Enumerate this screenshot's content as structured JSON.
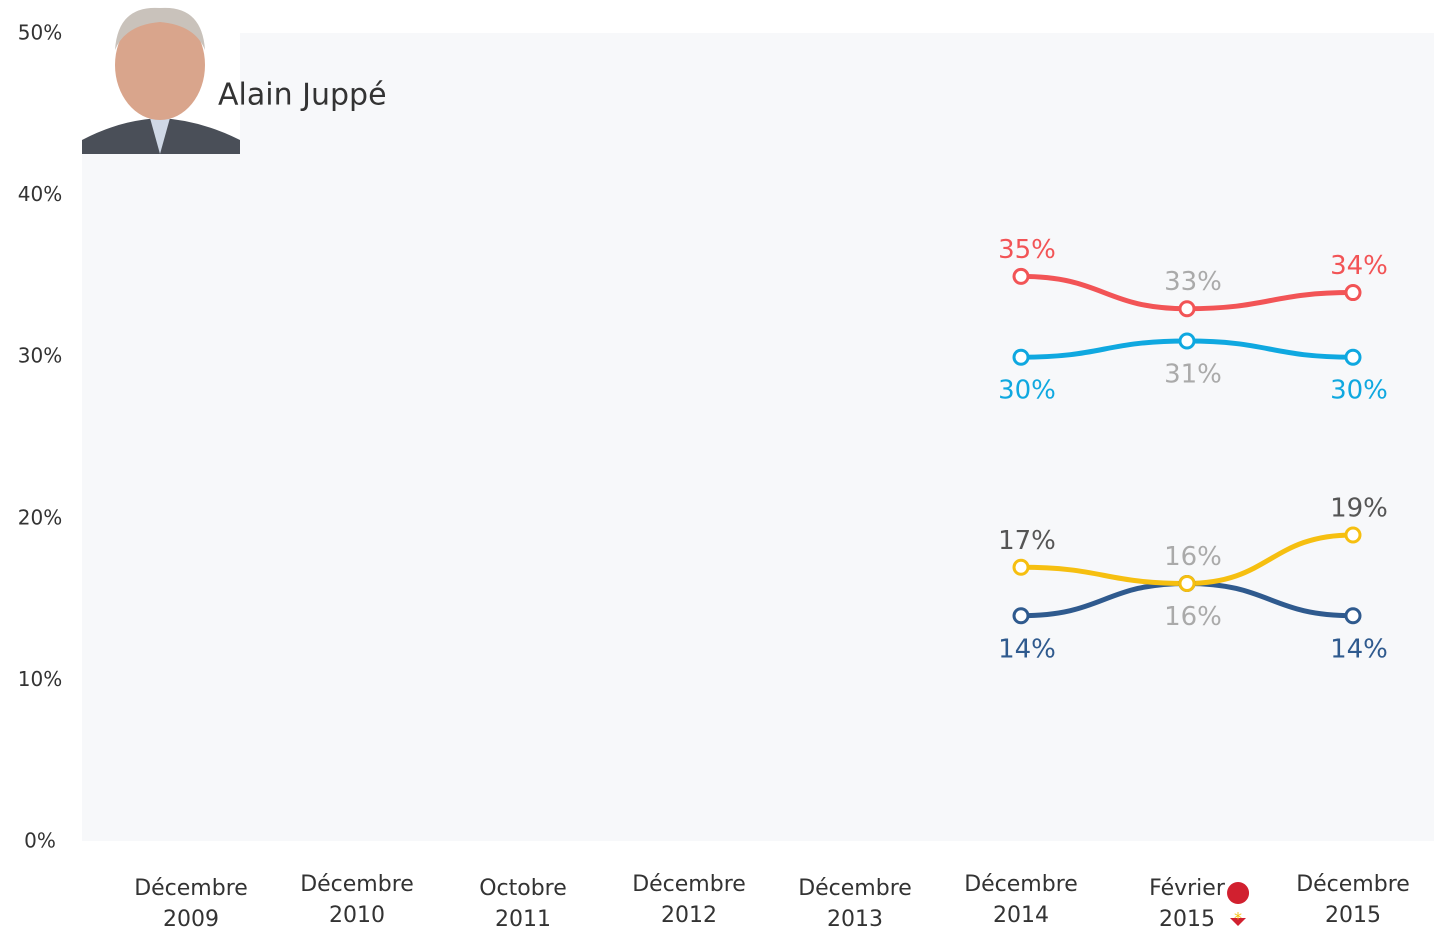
{
  "chart_data": {
    "type": "line",
    "title": "Alain Juppé",
    "categories": [
      [
        "Décembre",
        "2009"
      ],
      [
        "Décembre",
        "2010"
      ],
      [
        "Octobre",
        "2011"
      ],
      [
        "Décembre",
        "2012"
      ],
      [
        "Décembre",
        "2013"
      ],
      [
        "Décembre",
        "2014"
      ],
      [
        "Février",
        "2015"
      ],
      [
        "Décembre",
        "2015"
      ]
    ],
    "ylim": [
      0,
      50
    ],
    "yticks": [
      {
        "value": 0,
        "label": "0%"
      },
      {
        "value": 10,
        "label": "10%"
      },
      {
        "value": 20,
        "label": "20%"
      },
      {
        "value": 30,
        "label": "30%"
      },
      {
        "value": 40,
        "label": "40%"
      },
      {
        "value": 50,
        "label": "50%"
      }
    ],
    "series": [
      {
        "color": "#f25456",
        "label_position": "above",
        "label_colors": [
          null,
          null,
          null,
          null,
          null,
          "#f25456",
          "#aaaaaa",
          "#f25456"
        ],
        "values": [
          null,
          null,
          null,
          null,
          null,
          35,
          33,
          34
        ],
        "value_labels": [
          null,
          null,
          null,
          null,
          null,
          "35%",
          "33%",
          "34%"
        ]
      },
      {
        "color": "#0fa8e0",
        "label_position": "below",
        "label_colors": [
          null,
          null,
          null,
          null,
          null,
          "#0fa8e0",
          "#aaaaaa",
          "#0fa8e0"
        ],
        "values": [
          null,
          null,
          null,
          null,
          null,
          30,
          31,
          30
        ],
        "value_labels": [
          null,
          null,
          null,
          null,
          null,
          "30%",
          "31%",
          "30%"
        ]
      },
      {
        "color": "#2f5a8e",
        "label_position": "below",
        "label_colors": [
          null,
          null,
          null,
          null,
          null,
          "#2f5a8e",
          "#aaaaaa",
          "#2f5a8e"
        ],
        "values": [
          null,
          null,
          null,
          null,
          null,
          14,
          16,
          14
        ],
        "value_labels": [
          null,
          null,
          null,
          null,
          null,
          "14%",
          "16%",
          "14%"
        ]
      },
      {
        "color": "#f6bf10",
        "label_position": "above",
        "label_colors": [
          null,
          null,
          null,
          null,
          null,
          "#555555",
          "#aaaaaa",
          "#555555"
        ],
        "values": [
          null,
          null,
          null,
          null,
          null,
          17,
          16,
          19
        ],
        "value_labels": [
          null,
          null,
          null,
          null,
          null,
          "17%",
          "16%",
          "19%"
        ]
      }
    ]
  }
}
